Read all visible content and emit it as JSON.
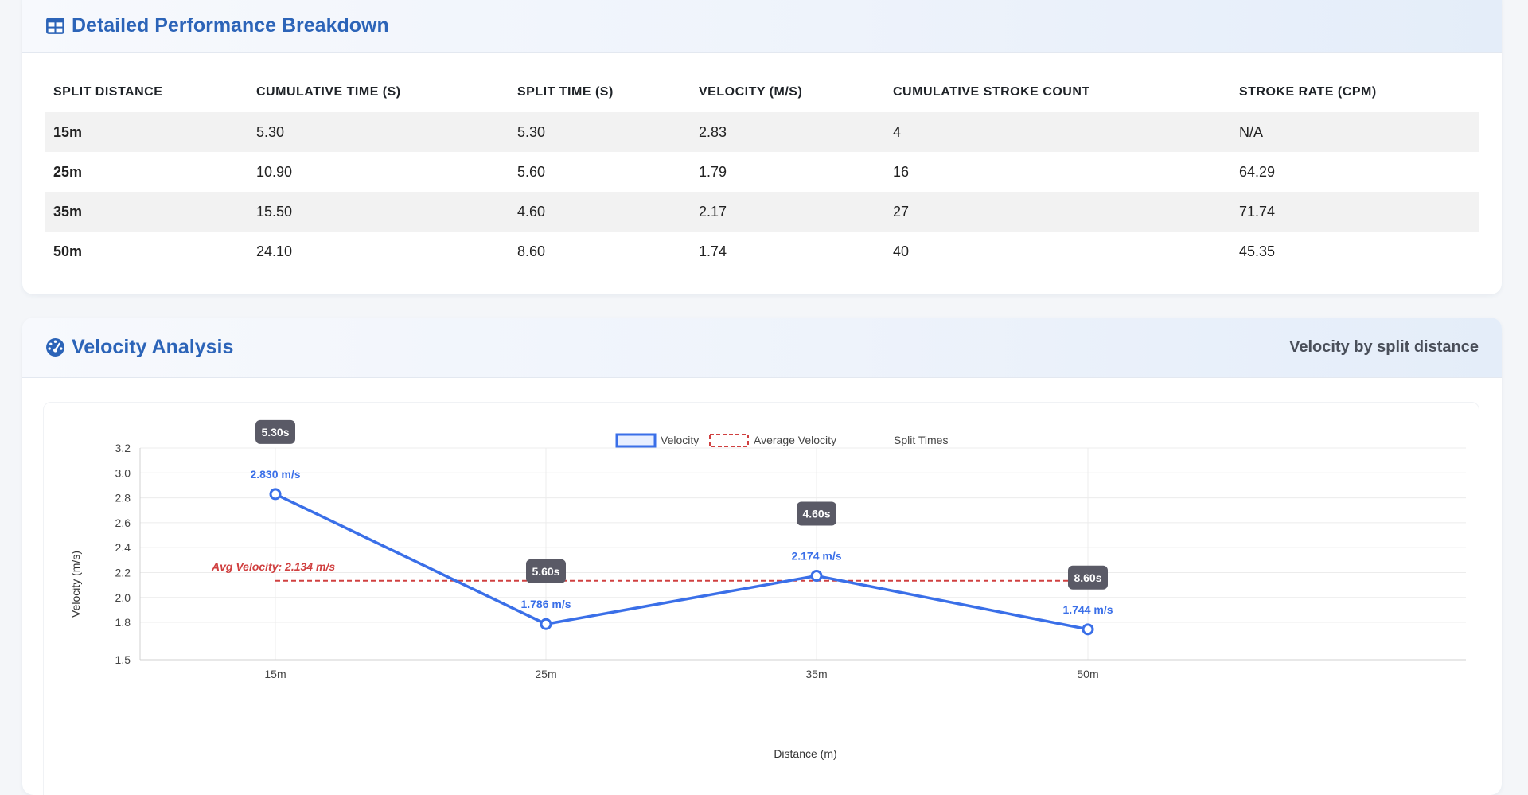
{
  "perf": {
    "title": "Detailed Performance Breakdown",
    "icon": "table-icon",
    "columns": [
      "SPLIT DISTANCE",
      "CUMULATIVE TIME (S)",
      "SPLIT TIME (S)",
      "VELOCITY (M/S)",
      "CUMULATIVE STROKE COUNT",
      "STROKE RATE (CPM)"
    ],
    "rows": [
      [
        "15m",
        "5.30",
        "5.30",
        "2.83",
        "4",
        "N/A"
      ],
      [
        "25m",
        "10.90",
        "5.60",
        "1.79",
        "16",
        "64.29"
      ],
      [
        "35m",
        "15.50",
        "4.60",
        "2.17",
        "27",
        "71.74"
      ],
      [
        "50m",
        "24.10",
        "8.60",
        "1.74",
        "40",
        "45.35"
      ]
    ]
  },
  "velocity": {
    "title": "Velocity Analysis",
    "icon": "gauge-icon",
    "subtitle": "Velocity by split distance"
  },
  "colors": {
    "accent": "#2c64b8",
    "line": "#3a6fe8",
    "avg": "#d04040",
    "badge": "#5a5a66"
  },
  "chart_data": {
    "type": "line",
    "categories": [
      "15m",
      "25m",
      "35m",
      "50m"
    ],
    "series": [
      {
        "name": "Velocity",
        "values": [
          2.83,
          1.786,
          2.174,
          1.744
        ],
        "labels": [
          "2.830 m/s",
          "1.786 m/s",
          "2.174 m/s",
          "1.744 m/s"
        ]
      },
      {
        "name": "Average Velocity",
        "value": 2.134,
        "label": "Avg Velocity: 2.134 m/s"
      },
      {
        "name": "Split Times",
        "values": [
          5.3,
          5.6,
          4.6,
          8.6
        ],
        "labels": [
          "5.30s",
          "5.60s",
          "4.60s",
          "8.60s"
        ]
      }
    ],
    "xlabel": "Distance (m)",
    "ylabel": "Velocity (m/s)",
    "ylim": [
      1.5,
      3.2
    ],
    "yticks": [
      "1.5",
      "1.8",
      "2.0",
      "2.2",
      "2.4",
      "2.6",
      "2.8",
      "3.0",
      "3.2"
    ],
    "ytick_values": [
      1.5,
      1.8,
      2.0,
      2.2,
      2.4,
      2.6,
      2.8,
      3.0,
      3.2
    ],
    "grid": true,
    "legend": "top-center"
  }
}
